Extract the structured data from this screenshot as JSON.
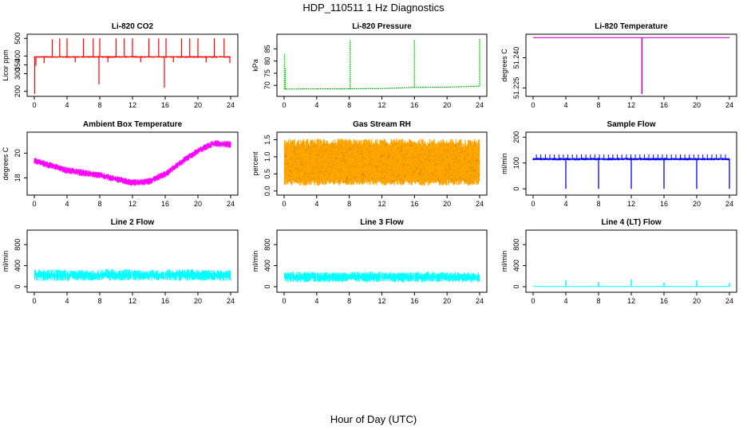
{
  "figure": {
    "title": "HDP_110511  1 Hz Diagnostics",
    "xlabel": "Hour of Day (UTC)"
  },
  "chart_data": [
    {
      "type": "line",
      "title": "Li-820 CO2",
      "ylabel": "Licor ppm",
      "color": "#ff0000",
      "xlim": [
        0,
        24
      ],
      "ylim": [
        185,
        510
      ],
      "xticks": [
        0,
        4,
        8,
        12,
        16,
        20,
        24
      ],
      "yticks": [
        200,
        300,
        350,
        400,
        500
      ],
      "series": [
        {
          "baseline": 395,
          "band": 10,
          "segments": [
            [
              0,
              24
            ]
          ],
          "spikes": [
            [
              0.05,
              185
            ],
            [
              0.2,
              345
            ],
            [
              1.2,
              360
            ],
            [
              2.2,
              495
            ],
            [
              3.1,
              500
            ],
            [
              4.0,
              500
            ],
            [
              5.0,
              365
            ],
            [
              6.0,
              500
            ],
            [
              7.2,
              500
            ],
            [
              7.9,
              240
            ],
            [
              8.0,
              500
            ],
            [
              9.0,
              365
            ],
            [
              10.0,
              500
            ],
            [
              11.0,
              500
            ],
            [
              12.0,
              500
            ],
            [
              13.0,
              365
            ],
            [
              14.0,
              500
            ],
            [
              15.2,
              500
            ],
            [
              15.9,
              220
            ],
            [
              16.1,
              500
            ],
            [
              17.0,
              365
            ],
            [
              18.0,
              500
            ],
            [
              19.0,
              500
            ],
            [
              20.0,
              500
            ],
            [
              21.0,
              365
            ],
            [
              22.0,
              500
            ],
            [
              23.2,
              500
            ],
            [
              23.9,
              360
            ]
          ]
        }
      ]
    },
    {
      "type": "line",
      "title": "Li-820 Pressure",
      "ylabel": "kPa",
      "color": "#00cc00",
      "xlim": [
        0,
        24
      ],
      "ylim": [
        66.5,
        90
      ],
      "xticks": [
        0,
        4,
        8,
        12,
        16,
        20,
        24
      ],
      "yticks": [
        70,
        75,
        80,
        85
      ],
      "series": [
        {
          "points": [
            [
              0,
              68.5
            ],
            [
              4,
              68.6
            ],
            [
              8,
              68.6
            ],
            [
              12,
              68.7
            ],
            [
              16,
              69.2
            ],
            [
              20,
              69.3
            ],
            [
              24,
              69.7
            ]
          ],
          "spikes": [
            [
              0.05,
              83
            ],
            [
              0.15,
              77
            ],
            [
              8.1,
              88.5
            ],
            [
              16.0,
              88.7
            ],
            [
              24.0,
              89.2
            ]
          ],
          "dotted": true
        }
      ]
    },
    {
      "type": "line",
      "title": "Li-820 Temperature",
      "ylabel": "degrees C",
      "color": "#cc00cc",
      "xlim": [
        0,
        24
      ],
      "ylim": [
        51.222,
        51.2505
      ],
      "xticks": [
        0,
        4,
        8,
        12,
        16,
        20,
        24
      ],
      "yticks": [
        51.225,
        51.24
      ],
      "ytick_labels": [
        "51.225",
        "51.240"
      ],
      "series": [
        {
          "points": [
            [
              0,
              51.25
            ],
            [
              24,
              51.25
            ]
          ],
          "spikes": [
            [
              13.3,
              51.222
            ]
          ]
        }
      ]
    },
    {
      "type": "line",
      "title": "Ambient Box Temperature",
      "ylabel": "degrees C",
      "color": "#ff00ff",
      "xlim": [
        0,
        24
      ],
      "ylim": [
        16.8,
        21.5
      ],
      "xticks": [
        0,
        4,
        8,
        12,
        16,
        20,
        24
      ],
      "yticks": [
        18,
        20
      ],
      "series": [
        {
          "points": [
            [
              0,
              19.4
            ],
            [
              2,
              19.0
            ],
            [
              4,
              18.6
            ],
            [
              6,
              18.4
            ],
            [
              8,
              18.2
            ],
            [
              10,
              17.9
            ],
            [
              12,
              17.6
            ],
            [
              14,
              17.7
            ],
            [
              16,
              18.3
            ],
            [
              18,
              19.3
            ],
            [
              20,
              20.2
            ],
            [
              22,
              20.8
            ],
            [
              24,
              20.7
            ]
          ],
          "band": 0.55
        }
      ]
    },
    {
      "type": "line",
      "title": "Gas Stream RH",
      "ylabel": "percent",
      "color": "#ffa500",
      "xlim": [
        0,
        24
      ],
      "ylim": [
        -0.05,
        1.65
      ],
      "xticks": [
        0,
        4,
        8,
        12,
        16,
        20,
        24
      ],
      "yticks": [
        0.0,
        0.5,
        1.0,
        1.5
      ],
      "ytick_labels": [
        "0.0",
        "0.5",
        "1.0",
        "1.5"
      ],
      "series": [
        {
          "points": [
            [
              0,
              0.8
            ],
            [
              12,
              0.8
            ],
            [
              24,
              0.8
            ]
          ],
          "low": 0.25,
          "high": 1.4
        }
      ]
    },
    {
      "type": "line",
      "title": "Sample Flow",
      "ylabel": "ml/min",
      "color": "#0000ff",
      "xlim": [
        0,
        24
      ],
      "ylim": [
        -15,
        210
      ],
      "xticks": [
        0,
        4,
        8,
        12,
        16,
        20,
        24
      ],
      "yticks": [
        0,
        100,
        200
      ],
      "series": [
        {
          "baseline": 115,
          "band": 10,
          "dips": [
            4,
            8,
            12,
            16,
            20,
            24
          ]
        }
      ]
    },
    {
      "type": "line",
      "title": "Line 2 Flow",
      "ylabel": "ml/min",
      "color": "#00ffff",
      "xlim": [
        0,
        24
      ],
      "ylim": [
        -60,
        1030
      ],
      "xticks": [
        0,
        4,
        8,
        12,
        16,
        20,
        24
      ],
      "yticks": [
        0,
        400,
        800
      ],
      "series": [
        {
          "segments": [
            [
              0,
              4,
              110,
              330
            ],
            [
              4,
              8,
              110,
              320
            ],
            [
              8,
              12,
              110,
              340
            ],
            [
              12,
              16,
              110,
              320
            ],
            [
              16,
              20,
              110,
              340
            ],
            [
              20,
              24,
              110,
              320
            ]
          ]
        }
      ]
    },
    {
      "type": "line",
      "title": "Line 3 Flow",
      "ylabel": "ml/min",
      "color": "#00ffff",
      "xlim": [
        0,
        24
      ],
      "ylim": [
        -60,
        1030
      ],
      "xticks": [
        0,
        4,
        8,
        12,
        16,
        20,
        24
      ],
      "yticks": [
        0,
        400,
        800
      ],
      "series": [
        {
          "segments": [
            [
              0,
              4,
              80,
              290
            ],
            [
              4,
              8,
              80,
              280
            ],
            [
              8,
              12,
              80,
              290
            ],
            [
              12,
              16,
              80,
              280
            ],
            [
              16,
              20,
              80,
              290
            ],
            [
              20,
              24,
              80,
              280
            ]
          ]
        }
      ]
    },
    {
      "type": "line",
      "title": "Line 4 (LT) Flow",
      "ylabel": "ml/min",
      "color": "#00ffff",
      "xlim": [
        0,
        24
      ],
      "ylim": [
        -60,
        1030
      ],
      "xticks": [
        0,
        4,
        8,
        12,
        16,
        20,
        24
      ],
      "yticks": [
        0,
        400,
        800
      ],
      "series": [
        {
          "baseline": 5,
          "spikes": [
            [
              4.0,
              130
            ],
            [
              8.0,
              90
            ],
            [
              12.0,
              140
            ],
            [
              16.0,
              80
            ],
            [
              20.0,
              120
            ],
            [
              24.0,
              70
            ]
          ]
        }
      ]
    }
  ]
}
